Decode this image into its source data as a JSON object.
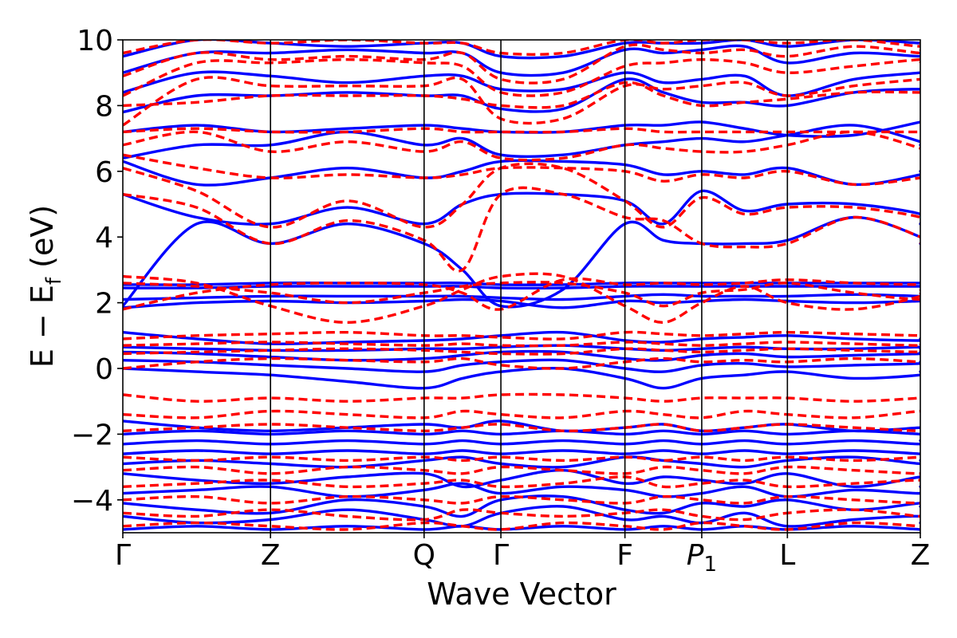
{
  "chart_data": {
    "type": "line",
    "xlabel": "Wave Vector",
    "ylabel": "E − E",
    "ylabel_subscript": "f",
    "ylabel_unit": "(eV)",
    "ylim": [
      -5,
      10
    ],
    "xlim": [
      0,
      5.4
    ],
    "y_ticks": [
      -4,
      -2,
      0,
      2,
      4,
      6,
      8,
      10
    ],
    "y_tick_labels": [
      "−4",
      "−2",
      "0",
      "2",
      "4",
      "6",
      "8",
      "10"
    ],
    "k_points": [
      {
        "label": "Γ",
        "pos": 0.0
      },
      {
        "label": "Z",
        "pos": 1.0
      },
      {
        "label": "Q",
        "pos": 2.04
      },
      {
        "label": "Γ",
        "pos": 2.56
      },
      {
        "label": "F",
        "pos": 3.4
      },
      {
        "label": "P",
        "sub": "1",
        "pos": 3.92
      },
      {
        "label": "L",
        "pos": 4.5
      },
      {
        "label": "Z",
        "pos": 5.4
      }
    ],
    "grid": false,
    "legend": "none",
    "series": [
      {
        "style": "solid",
        "color": "#0000ff",
        "bands": [
          [
            -4.9,
            -4.8,
            -4.9,
            -4.8,
            -4.9,
            -4.8,
            -4.9,
            -4.8,
            -4.9,
            -4.8,
            -4.9,
            -4.8,
            -4.9,
            -4.8,
            -4.9,
            -4.9
          ],
          [
            -4.5,
            -4.7,
            -4.6,
            -4.3,
            -4.6,
            -4.8,
            -4.4,
            -4.2,
            -4.6,
            -4.5,
            -4.7,
            -4.4,
            -4.8,
            -4.6,
            -4.5,
            -4.7
          ],
          [
            -4.1,
            -4.3,
            -4.4,
            -4.0,
            -4.2,
            -4.5,
            -4.0,
            -3.9,
            -4.3,
            -4.4,
            -4.1,
            -4.2,
            -4.0,
            -4.3,
            -4.1,
            -4.2
          ],
          [
            -3.8,
            -3.7,
            -3.6,
            -3.9,
            -3.7,
            -3.5,
            -3.8,
            -3.6,
            -3.7,
            -3.9,
            -3.8,
            -3.6,
            -3.9,
            -3.7,
            -3.8,
            -3.6
          ],
          [
            -3.2,
            -3.4,
            -3.5,
            -3.3,
            -3.2,
            -3.6,
            -3.4,
            -3.1,
            -3.5,
            -3.3,
            -3.4,
            -3.5,
            -3.2,
            -3.6,
            -3.3,
            -3.4
          ],
          [
            -2.9,
            -2.8,
            -2.9,
            -3.0,
            -2.8,
            -2.7,
            -2.9,
            -3.0,
            -2.7,
            -2.8,
            -2.9,
            -3.0,
            -2.8,
            -2.7,
            -2.9,
            -2.8
          ],
          [
            -2.6,
            -2.5,
            -2.6,
            -2.5,
            -2.6,
            -2.5,
            -2.6,
            -2.5,
            -2.6,
            -2.5,
            -2.6,
            -2.5,
            -2.6,
            -2.5,
            -2.6,
            -2.6
          ],
          [
            -2.3,
            -2.2,
            -2.3,
            -2.2,
            -2.3,
            -2.2,
            -2.3,
            -2.2,
            -2.3,
            -2.2,
            -2.3,
            -2.2,
            -2.3,
            -2.2,
            -2.3,
            -2.2
          ],
          [
            -2.0,
            -1.9,
            -2.0,
            -1.9,
            -2.0,
            -1.9,
            -2.0,
            -1.9,
            -2.0,
            -1.9,
            -2.0,
            -1.9,
            -2.0,
            -1.9,
            -2.0,
            -2.0
          ],
          [
            -1.6,
            -1.8,
            -1.9,
            -1.8,
            -1.7,
            -1.8,
            -1.6,
            -1.9,
            -1.8,
            -1.7,
            -1.9,
            -1.8,
            -1.7,
            -1.9,
            -1.8,
            -1.8
          ],
          [
            0.0,
            -0.1,
            -0.2,
            -0.4,
            -0.6,
            -0.3,
            -0.1,
            0.0,
            -0.3,
            -0.6,
            -0.3,
            -0.2,
            -0.1,
            -0.3,
            -0.2,
            -0.1
          ],
          [
            0.25,
            0.2,
            0.1,
            0.0,
            -0.1,
            0.1,
            0.2,
            0.25,
            0.0,
            -0.1,
            0.1,
            0.15,
            0.05,
            0.1,
            0.15,
            0.2
          ],
          [
            0.5,
            0.45,
            0.35,
            0.25,
            0.3,
            0.4,
            0.5,
            0.5,
            0.3,
            0.25,
            0.4,
            0.45,
            0.35,
            0.4,
            0.45,
            0.5
          ],
          [
            0.65,
            0.6,
            0.55,
            0.55,
            0.6,
            0.6,
            0.65,
            0.7,
            0.6,
            0.55,
            0.6,
            0.65,
            0.6,
            0.6,
            0.65,
            0.6
          ],
          [
            1.1,
            0.9,
            0.75,
            0.8,
            0.85,
            0.9,
            1.0,
            1.1,
            0.85,
            0.8,
            0.9,
            0.95,
            1.0,
            0.9,
            0.85,
            0.9
          ],
          [
            1.85,
            2.0,
            2.05,
            2.0,
            2.05,
            2.1,
            2.05,
            1.85,
            2.05,
            2.0,
            2.05,
            2.1,
            2.05,
            2.0,
            2.05,
            2.05
          ],
          [
            2.1,
            2.15,
            2.2,
            2.2,
            2.2,
            2.2,
            2.15,
            2.1,
            2.2,
            2.25,
            2.2,
            2.2,
            2.2,
            2.25,
            2.2,
            2.2
          ],
          [
            2.45,
            2.45,
            2.5,
            2.5,
            2.5,
            2.5,
            2.45,
            2.45,
            2.5,
            2.5,
            2.5,
            2.5,
            2.5,
            2.5,
            2.5,
            2.5
          ],
          [
            2.55,
            2.55,
            2.6,
            2.6,
            2.6,
            2.6,
            2.55,
            2.55,
            2.6,
            2.6,
            2.6,
            2.6,
            2.6,
            2.6,
            2.6,
            2.6
          ],
          [
            1.9,
            4.4,
            3.8,
            4.4,
            3.8,
            3.0,
            1.9,
            2.4,
            4.4,
            3.9,
            3.8,
            3.8,
            3.9,
            4.6,
            4.0,
            3.8
          ],
          [
            5.3,
            4.6,
            4.4,
            4.9,
            4.4,
            5.0,
            5.3,
            5.3,
            5.1,
            4.4,
            5.4,
            4.8,
            5.0,
            5.0,
            4.7,
            4.4
          ],
          [
            6.3,
            5.6,
            5.8,
            6.1,
            5.8,
            6.0,
            6.3,
            6.3,
            6.2,
            5.9,
            6.0,
            5.9,
            6.1,
            5.6,
            5.9,
            6.0
          ],
          [
            6.4,
            6.8,
            6.8,
            7.2,
            6.8,
            7.0,
            6.5,
            6.5,
            6.8,
            6.9,
            7.0,
            6.9,
            7.1,
            7.4,
            6.9,
            6.8
          ],
          [
            7.2,
            7.4,
            7.2,
            7.3,
            7.4,
            7.3,
            7.2,
            7.2,
            7.4,
            7.4,
            7.5,
            7.3,
            7.1,
            7.1,
            7.5,
            7.5
          ],
          [
            7.8,
            8.3,
            8.3,
            8.4,
            8.3,
            8.3,
            7.9,
            7.9,
            8.8,
            8.4,
            8.1,
            8.1,
            8.0,
            8.4,
            8.5,
            8.4
          ],
          [
            8.4,
            9.0,
            8.9,
            8.7,
            8.9,
            8.9,
            8.5,
            8.5,
            9.0,
            8.7,
            8.8,
            8.9,
            8.3,
            8.8,
            9.0,
            9.0
          ],
          [
            9.0,
            9.6,
            9.6,
            9.7,
            9.6,
            9.6,
            9.0,
            9.0,
            9.7,
            9.6,
            9.7,
            9.8,
            9.3,
            9.6,
            9.5,
            9.6
          ],
          [
            9.5,
            10.0,
            9.9,
            9.8,
            9.9,
            9.9,
            9.5,
            9.5,
            9.9,
            9.9,
            9.9,
            10.0,
            9.8,
            10.0,
            9.9,
            9.9
          ]
        ]
      },
      {
        "style": "dashed",
        "color": "#ff0000",
        "bands": [
          [
            -4.8,
            -4.7,
            -4.8,
            -4.9,
            -4.7,
            -4.8,
            -4.9,
            -4.7,
            -4.8,
            -4.9,
            -4.7,
            -4.8,
            -4.9,
            -4.7,
            -4.8,
            -4.8
          ],
          [
            -4.4,
            -4.5,
            -4.3,
            -4.5,
            -4.6,
            -4.3,
            -4.4,
            -4.5,
            -4.4,
            -4.3,
            -4.5,
            -4.6,
            -4.4,
            -4.3,
            -4.5,
            -4.4
          ],
          [
            -4.0,
            -3.9,
            -4.1,
            -3.9,
            -4.0,
            -4.1,
            -3.9,
            -4.0,
            -4.1,
            -3.9,
            -4.0,
            -4.1,
            -3.9,
            -4.0,
            -4.1,
            -4.0
          ],
          [
            -3.6,
            -3.5,
            -3.4,
            -3.6,
            -3.5,
            -3.4,
            -3.6,
            -3.5,
            -3.3,
            -3.6,
            -3.5,
            -3.4,
            -3.6,
            -3.5,
            -3.4,
            -3.5
          ],
          [
            -3.1,
            -3.0,
            -3.2,
            -3.0,
            -3.1,
            -3.2,
            -3.0,
            -3.1,
            -3.2,
            -3.0,
            -3.1,
            -3.2,
            -3.0,
            -3.1,
            -3.2,
            -3.1
          ],
          [
            -2.7,
            -2.8,
            -2.7,
            -2.8,
            -2.7,
            -2.8,
            -2.7,
            -2.8,
            -2.7,
            -2.8,
            -2.7,
            -2.8,
            -2.7,
            -2.8,
            -2.7,
            -2.7
          ],
          [
            -1.9,
            -1.8,
            -1.7,
            -1.8,
            -1.9,
            -1.8,
            -1.7,
            -1.9,
            -1.8,
            -1.7,
            -1.9,
            -1.8,
            -1.7,
            -1.8,
            -1.9,
            -1.8
          ],
          [
            -1.4,
            -1.5,
            -1.3,
            -1.4,
            -1.5,
            -1.3,
            -1.4,
            -1.5,
            -1.3,
            -1.4,
            -1.5,
            -1.3,
            -1.4,
            -1.5,
            -1.3,
            -1.4
          ],
          [
            -0.8,
            -1.0,
            -0.9,
            -1.0,
            -0.9,
            -0.9,
            -0.8,
            -0.8,
            -0.9,
            -1.0,
            -0.9,
            -0.9,
            -0.9,
            -1.0,
            -0.9,
            -0.9
          ],
          [
            0.0,
            0.2,
            0.3,
            0.25,
            0.2,
            0.3,
            0.1,
            0.0,
            0.2,
            0.3,
            0.2,
            0.25,
            0.2,
            0.3,
            0.2,
            0.25
          ],
          [
            0.45,
            0.5,
            0.55,
            0.6,
            0.55,
            0.5,
            0.45,
            0.45,
            0.6,
            0.55,
            0.5,
            0.55,
            0.6,
            0.55,
            0.5,
            0.55
          ],
          [
            0.7,
            0.75,
            0.8,
            0.75,
            0.7,
            0.75,
            0.7,
            0.7,
            0.8,
            0.75,
            0.7,
            0.75,
            0.8,
            0.75,
            0.7,
            0.75
          ],
          [
            0.9,
            1.0,
            1.05,
            1.1,
            1.0,
            1.0,
            0.95,
            0.9,
            1.1,
            1.05,
            1.0,
            1.05,
            1.1,
            1.05,
            1.0,
            1.0
          ],
          [
            2.8,
            2.6,
            1.9,
            1.4,
            1.9,
            2.4,
            2.8,
            2.8,
            1.9,
            1.4,
            2.0,
            2.5,
            2.0,
            1.8,
            2.2,
            2.4
          ],
          [
            2.6,
            2.5,
            2.3,
            2.0,
            2.3,
            2.5,
            2.6,
            2.6,
            2.3,
            1.9,
            2.3,
            2.4,
            2.6,
            2.3,
            2.1,
            2.3
          ],
          [
            1.8,
            2.3,
            2.55,
            2.6,
            2.55,
            2.3,
            1.8,
            2.7,
            2.55,
            2.6,
            2.55,
            2.6,
            2.7,
            2.6,
            2.55,
            2.6
          ],
          [
            5.3,
            4.9,
            3.8,
            4.5,
            3.9,
            3.0,
            5.3,
            5.3,
            4.6,
            4.5,
            3.8,
            3.7,
            3.8,
            4.6,
            4.0,
            3.8
          ],
          [
            6.1,
            5.4,
            4.3,
            5.1,
            4.3,
            5.0,
            6.1,
            6.1,
            5.1,
            4.3,
            5.2,
            4.7,
            4.9,
            4.9,
            4.6,
            4.3
          ],
          [
            6.5,
            6.1,
            5.8,
            5.9,
            5.8,
            5.9,
            6.1,
            6.1,
            6.0,
            5.7,
            5.9,
            5.8,
            6.0,
            5.6,
            5.8,
            5.8
          ],
          [
            6.8,
            7.2,
            6.6,
            6.9,
            6.6,
            6.9,
            6.4,
            6.4,
            6.8,
            6.7,
            6.6,
            6.6,
            6.8,
            7.2,
            6.7,
            6.6
          ],
          [
            7.2,
            7.3,
            7.2,
            7.2,
            7.3,
            7.2,
            7.2,
            7.2,
            7.3,
            7.2,
            7.2,
            7.2,
            7.2,
            7.2,
            7.2,
            7.2
          ],
          [
            8.0,
            8.1,
            8.3,
            8.3,
            8.3,
            8.2,
            8.0,
            8.0,
            8.7,
            8.3,
            8.0,
            8.1,
            8.2,
            8.4,
            8.4,
            8.4
          ],
          [
            7.4,
            8.8,
            8.6,
            8.6,
            8.6,
            8.8,
            7.6,
            7.6,
            8.6,
            8.5,
            8.6,
            8.7,
            8.3,
            8.6,
            8.8,
            8.8
          ],
          [
            8.3,
            9.3,
            9.3,
            9.4,
            9.3,
            9.2,
            8.4,
            8.4,
            9.2,
            9.3,
            9.4,
            9.3,
            9.0,
            9.2,
            9.4,
            9.3
          ],
          [
            8.9,
            9.6,
            9.4,
            9.5,
            9.4,
            9.6,
            8.8,
            8.8,
            9.8,
            9.7,
            9.6,
            9.7,
            9.5,
            9.8,
            9.6,
            9.7
          ],
          [
            9.6,
            10.0,
            9.9,
            10.0,
            9.9,
            9.9,
            9.6,
            9.6,
            10.0,
            9.9,
            10.0,
            10.0,
            9.9,
            10.0,
            9.8,
            9.9
          ]
        ]
      }
    ]
  }
}
